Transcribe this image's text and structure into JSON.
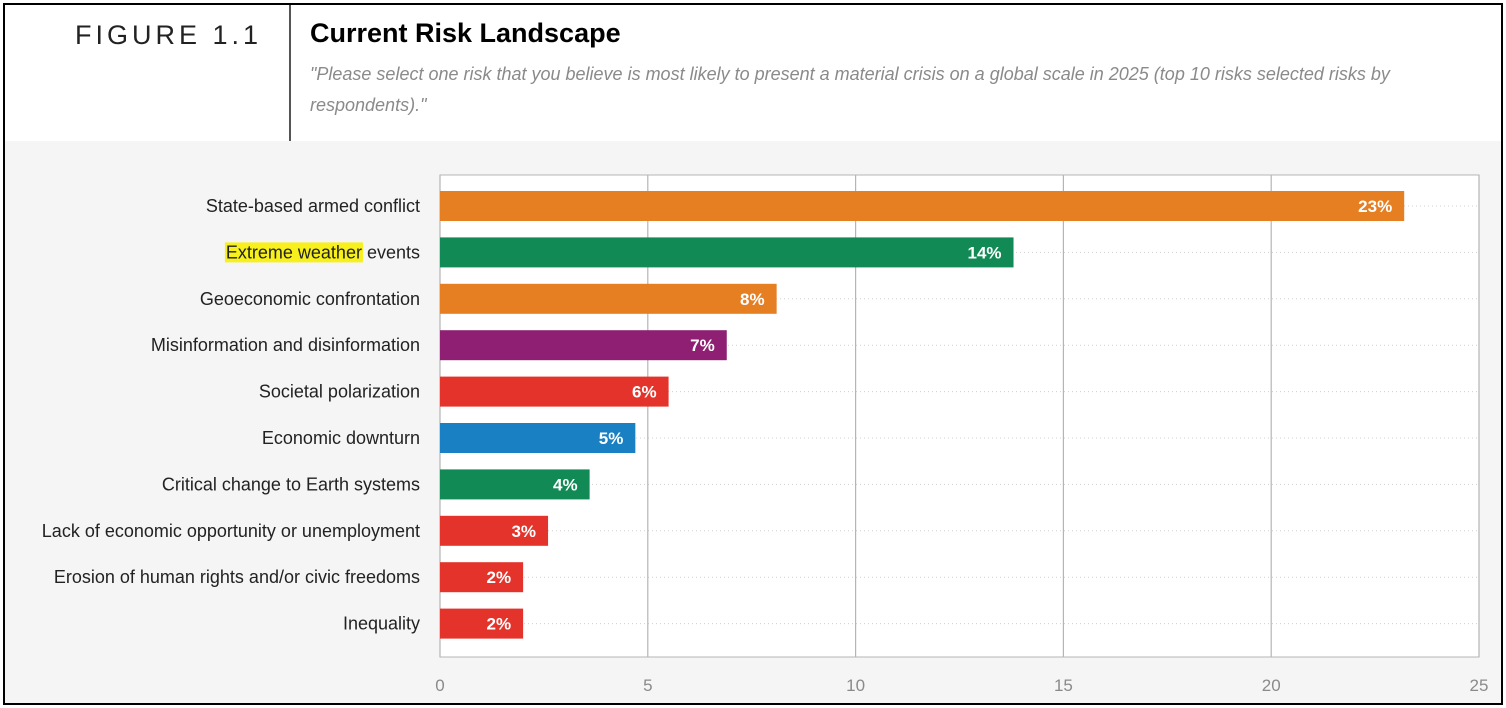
{
  "figure_label": "FIGURE 1.1",
  "chart_data": {
    "type": "bar",
    "orientation": "horizontal",
    "title": "Current Risk Landscape",
    "subtitle": "\"Please select one risk that you believe is most likely to present a material crisis on a global scale in 2025 (top 10 risks selected risks by respondents).\"",
    "categories": [
      "State-based armed conflict",
      "Extreme weather events",
      "Geoeconomic confrontation",
      "Misinformation and disinformation",
      "Societal polarization",
      "Economic downturn",
      "Critical change to Earth systems",
      "Lack of economic opportunity or unemployment",
      "Erosion of human rights and/or civic freedoms",
      "Inequality"
    ],
    "values": [
      23.2,
      13.8,
      8.1,
      6.9,
      5.5,
      4.7,
      3.6,
      2.6,
      2.0,
      2.0
    ],
    "data_labels": [
      "23%",
      "14%",
      "8%",
      "7%",
      "6%",
      "5%",
      "4%",
      "3%",
      "2%",
      "2%"
    ],
    "colors": [
      "#e67e22",
      "#118a55",
      "#e67e22",
      "#8e1f73",
      "#e3332b",
      "#1a80c4",
      "#118a55",
      "#e3332b",
      "#e3332b",
      "#e3332b"
    ],
    "highlight": {
      "category_index": 1,
      "text": "Extreme weather",
      "color": "#f8f01c"
    },
    "xlim": [
      0,
      25
    ],
    "xticks": [
      0,
      5,
      10,
      15,
      20,
      25
    ],
    "xlabel": "",
    "ylabel": "",
    "grid": true
  }
}
